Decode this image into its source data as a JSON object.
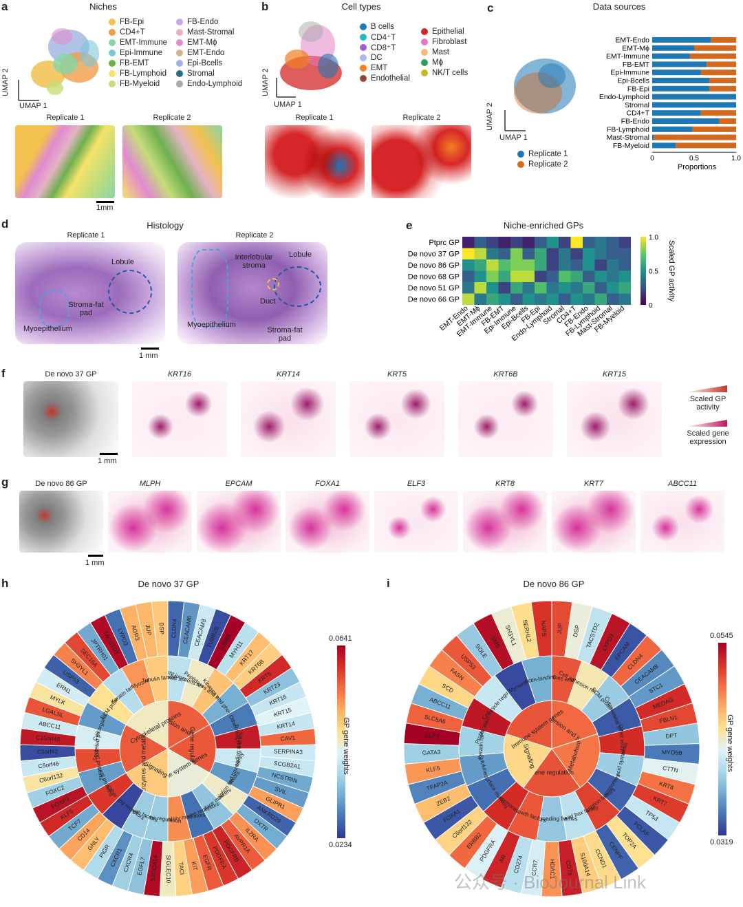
{
  "panel_a": {
    "letter": "a",
    "title": "Niches",
    "axis_y": "UMAP 2",
    "axis_x": "UMAP 1",
    "legend": [
      {
        "label": "FB-Epi",
        "color": "#f2c14e"
      },
      {
        "label": "CD4+T",
        "color": "#f39c4a"
      },
      {
        "label": "EMT-Immune",
        "color": "#86d6a8"
      },
      {
        "label": "Epi-Immune",
        "color": "#7cc8d8"
      },
      {
        "label": "FB-EMT",
        "color": "#6fb04f"
      },
      {
        "label": "FB-Lymphoid",
        "color": "#f5e36a"
      },
      {
        "label": "FB-Myeloid",
        "color": "#c4dd7a"
      },
      {
        "label": "FB-Endo",
        "color": "#c9a8e8"
      },
      {
        "label": "Mast-Stromal",
        "color": "#e3b3c4"
      },
      {
        "label": "EMT-Mϕ",
        "color": "#e18ad0"
      },
      {
        "label": "EMT-Endo",
        "color": "#d1b48f"
      },
      {
        "label": "Epi-Bcells",
        "color": "#9fb3e0"
      },
      {
        "label": "Stromal",
        "color": "#2f6b80"
      },
      {
        "label": "Endo-Lymphoid",
        "color": "#a9a9a9"
      }
    ],
    "replicate1": "Replicate 1",
    "replicate2": "Replicate 2",
    "scale": "1mm"
  },
  "panel_b": {
    "letter": "b",
    "title": "Cell types",
    "axis_y": "UMAP 2",
    "axis_x": "UMAP 1",
    "legend": [
      {
        "label": "B cells",
        "color": "#1f77b4"
      },
      {
        "label": "CD4⁺T",
        "color": "#22b8c8"
      },
      {
        "label": "CD8⁺T",
        "color": "#a05de0"
      },
      {
        "label": "DC",
        "color": "#aeb8f0"
      },
      {
        "label": "EMT",
        "color": "#f07f22"
      },
      {
        "label": "Endothelial",
        "color": "#8c4a3a"
      },
      {
        "label": "Epithelial",
        "color": "#d62728"
      },
      {
        "label": "Fibroblast",
        "color": "#e377c2"
      },
      {
        "label": "Mast",
        "color": "#f5b879"
      },
      {
        "label": "Mϕ",
        "color": "#2ca05a"
      },
      {
        "label": "NK/T cells",
        "color": "#bcbd22"
      }
    ],
    "replicate1": "Replicate 1",
    "replicate2": "Replicate 2"
  },
  "panel_c": {
    "letter": "c",
    "title": "Data sources",
    "axis_y": "UMAP 2",
    "axis_x": "UMAP 1",
    "legend": [
      {
        "label": "Replicate 1",
        "color": "#1f77b4"
      },
      {
        "label": "Replicate 2",
        "color": "#d2691e"
      }
    ]
  },
  "panel_d": {
    "letter": "d",
    "title": "Histology",
    "replicate1": "Replicate 1",
    "replicate2": "Replicate 2",
    "labels_r1": [
      "Lobule",
      "Stroma-fat pad",
      "Myoepithelium"
    ],
    "labels_r2": [
      "Interlobular stroma",
      "Lobule",
      "Duct",
      "Myoepithelium",
      "Stroma-fat pad"
    ],
    "scale": "1 mm"
  },
  "panel_e": {
    "letter": "e",
    "title": "Niche-enriched GPs",
    "colorbar_label": "Scaled GP activity",
    "colorbar_ticks": [
      "1.0",
      "0.5",
      "0"
    ]
  },
  "panel_f": {
    "letter": "f",
    "genes": [
      "De novo 37 GP",
      "KRT16",
      "KRT14",
      "KRT5",
      "KRT6B",
      "KRT15"
    ],
    "legend_gp": "Scaled GP activity",
    "legend_gene": "Scaled gene expression",
    "scale": "1 mm"
  },
  "panel_g": {
    "letter": "g",
    "genes": [
      "De novo 86 GP",
      "MLPH",
      "EPCAM",
      "FOXA1",
      "ELF3",
      "KRT8",
      "KRT7",
      "ABCC11"
    ],
    "scale": "1 mm"
  },
  "panel_h": {
    "letter": "h",
    "title": "De novo 37 GP",
    "colorbar_max": "0.0641",
    "colorbar_min": "0.0234",
    "colorbar_label": "GP gene weights",
    "inner": [
      "Cell adhesion and junctions",
      "Gene regulation",
      "Immune system genes",
      "Signaling",
      "Enzymes and metabolic proteins",
      "Cytoskeletal proteins"
    ],
    "middle": [
      "Desmosomes and junctions",
      "Tight junctions and adhesion",
      "Peptidases and hydrolases",
      "Kinases and phosphatases",
      "Other",
      "Transporters",
      "Open reading frames",
      "Forkhead box family",
      "Transcription factors",
      "Cell surface markers",
      "Chemokine receptors",
      "Inflammatory mediators",
      "Immune regulation",
      "Growth factors",
      "Signaling receptors",
      "Other",
      "Structural proteins",
      "Transport proteins",
      "Secreted proteins",
      "Cell organization",
      "ECM proteins",
      "Keratin family",
      "Myosins",
      "Tubulin family"
    ],
    "outer": [
      "CLDN4",
      "CEACAM6",
      "CEACAM8",
      "TUBB2B",
      "TUBB3",
      "MYH11",
      "KRT17",
      "KRT6B",
      "KRT5",
      "KRT23",
      "KRT16",
      "KRT15",
      "KRT14",
      "CAV1",
      "SERPINA3",
      "SCGB2A1",
      "NCSTRIN",
      "SVIL",
      "GLIPR1",
      "ANKRD29",
      "OXTR",
      "IL2RA",
      "AVPR1A",
      "PDGFRB",
      "PDGFRA",
      "EGFR",
      "KIT",
      "TACI",
      "SIGLEC10",
      "S1OOA14",
      "EGFL7",
      "CXCR4",
      "CXCR1",
      "PIGR",
      "GNLY",
      "CD14",
      "TCF7",
      "KLF5",
      "FOXP3",
      "FOXC2",
      "C6orf132",
      "C5orf46",
      "C2orf42",
      "C15orf48",
      "ABCC11",
      "LGALSL",
      "MYLK",
      "ERN1",
      "USP53",
      "SH3YL1",
      "SEC16A",
      "JPTRH01",
      "TACSTD2",
      "LYPD3",
      "AGR3",
      "JUP",
      "DSP"
    ]
  },
  "panel_i": {
    "letter": "i",
    "title": "De novo 86 GP",
    "colorbar_max": "0.0545",
    "colorbar_min": "0.0319",
    "colorbar_label": "GP gene weights",
    "inner": [
      "Cell adhesion and junctions",
      "Metabolism",
      "Gene regulation",
      "Signaling",
      "Immune system genes"
    ],
    "middle": [
      "Desmosomes and junctions",
      "Cell adhesion molecules",
      "ECM proteins",
      "Cytoskeletal proteins",
      "Other enzymes",
      "Fatty acid synthesis",
      "Transporters",
      "Transcription factors",
      "Forkhead box family",
      "Open reading frames",
      "Growth factors",
      "Hormones",
      "Cell surface markers",
      "Cytokines",
      "Keratin family",
      "Proliferation markers",
      "Cell cycle regulators",
      "Myosins",
      "Actin-binding"
    ],
    "outer": [
      "JUP",
      "DSP",
      "TACSTD2",
      "LYPD3",
      "EPCAM",
      "CLDN4",
      "CEACAM8",
      "STC1",
      "MEDAG",
      "FBLN1",
      "DPT",
      "MYO5B",
      "CTTN",
      "KRT8",
      "KRT7",
      "TP53",
      "PCLAF",
      "TOP2A",
      "CENPF",
      "CCND1",
      "S100A14",
      "CD73",
      "HDAC1",
      "CCR7",
      "CD274",
      "AR",
      "PDGFRA",
      "ERBB2",
      "C6orf132",
      "FOXA1",
      "ZEB2",
      "TFAP2A",
      "KLF5",
      "GATA3",
      "ELF3",
      "SLC5A6",
      "ABCC11",
      "SCD",
      "FASN",
      "USP53",
      "SOLE",
      "SMS",
      "SH3YL1",
      "SERHL2",
      "NAPS"
    ]
  },
  "watermark": "公众号 · BioJournal Link"
}
